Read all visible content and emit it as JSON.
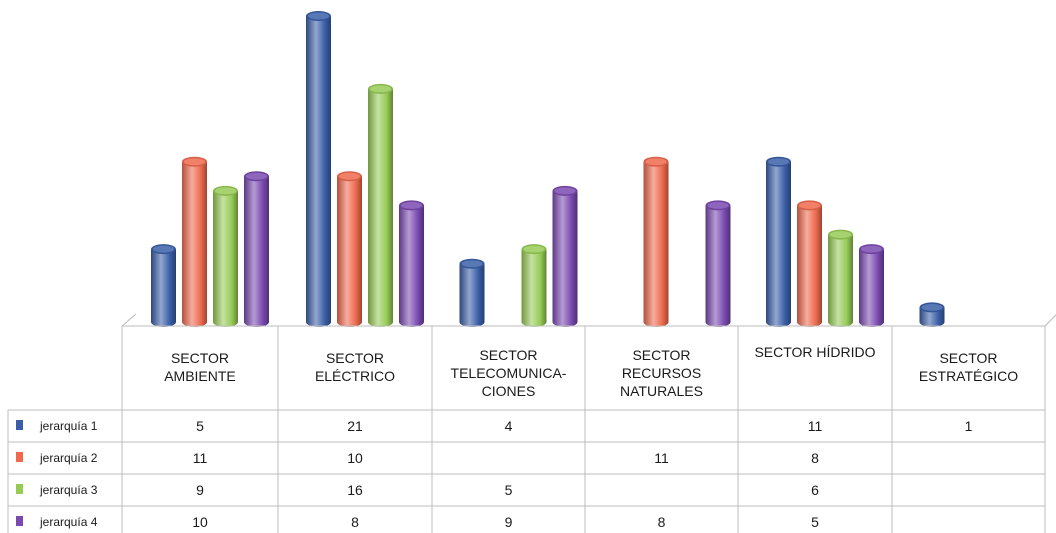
{
  "chart_data": {
    "type": "bar",
    "categories": [
      [
        "SECTOR",
        "AMBIENTE"
      ],
      [
        "SECTOR",
        "ELÉCTRICO"
      ],
      [
        "SECTOR",
        "TELECOMUNICA-",
        "CIONES"
      ],
      [
        "SECTOR",
        "RECURSOS",
        "NATURALES"
      ],
      [
        "SECTOR HÍDRIDO"
      ],
      [
        "SECTOR",
        "ESTRATÉGICO"
      ]
    ],
    "series": [
      {
        "name": "jerarquía 1",
        "color": "#3a5fa8",
        "values": [
          5,
          21,
          4,
          null,
          11,
          1
        ]
      },
      {
        "name": "jerarquía 2",
        "color": "#ee6a4f",
        "values": [
          11,
          10,
          null,
          11,
          8,
          null
        ]
      },
      {
        "name": "jerarquía 3",
        "color": "#96cb55",
        "values": [
          9,
          16,
          5,
          null,
          6,
          null
        ]
      },
      {
        "name": "jerarquía 4",
        "color": "#7a4ab0",
        "values": [
          10,
          8,
          9,
          8,
          5,
          null
        ]
      }
    ],
    "value_labels": [
      [
        "5",
        "21",
        "4",
        "",
        "11",
        "1"
      ],
      [
        "11",
        "10",
        "",
        "11",
        "8",
        ""
      ],
      [
        "9",
        "16",
        "5",
        "",
        "6",
        ""
      ],
      [
        "10",
        "8",
        "9",
        "8",
        "5",
        ""
      ]
    ],
    "ylim": [
      0,
      21
    ],
    "legend": "data-table-left"
  }
}
